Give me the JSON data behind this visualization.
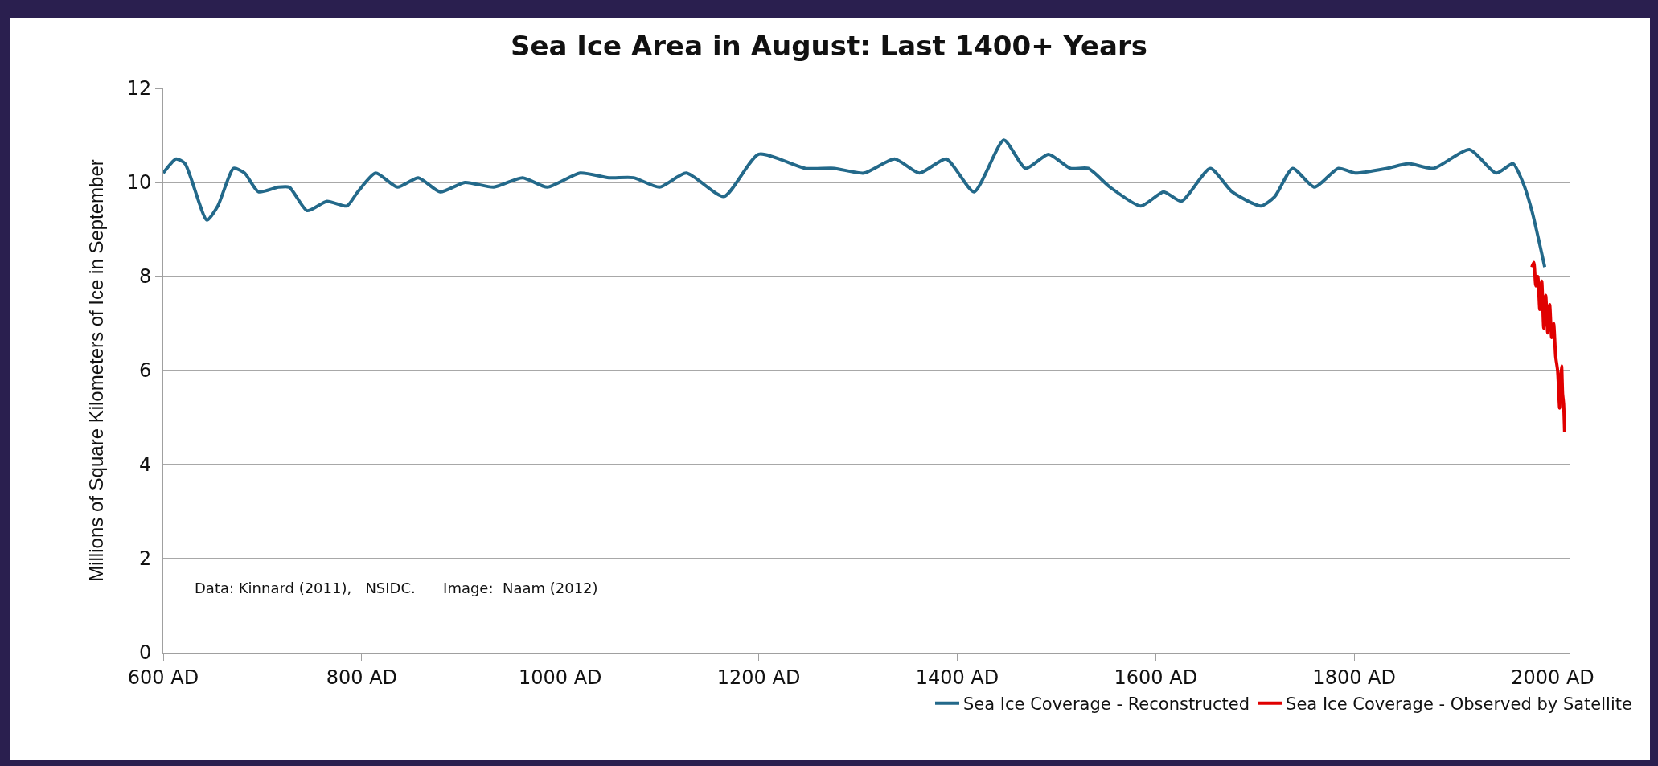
{
  "chart_data": {
    "type": "line",
    "title": "Sea Ice Area in August: Last 1400+ Years",
    "ylabel": "Millions of Square Kilometers of Ice in September",
    "xlim": [
      600,
      2017
    ],
    "ylim": [
      0,
      12
    ],
    "xticks": [
      {
        "value": 600,
        "label": "600 AD"
      },
      {
        "value": 800,
        "label": "800 AD"
      },
      {
        "value": 1000,
        "label": "1000 AD"
      },
      {
        "value": 1200,
        "label": "1200 AD"
      },
      {
        "value": 1400,
        "label": "1400 AD"
      },
      {
        "value": 1600,
        "label": "1600 AD"
      },
      {
        "value": 1800,
        "label": "1800 AD"
      },
      {
        "value": 2000,
        "label": "2000 AD"
      }
    ],
    "yticks": [
      0,
      2,
      4,
      6,
      8,
      10,
      12
    ],
    "grid": "y",
    "legend": "bottom",
    "marker": "none",
    "line_style": "solid",
    "annotations": [
      "Data: Kinnard (2011),   NSIDC.      Image:  Naam (2012)"
    ],
    "series": [
      {
        "name": "Sea Ice Coverage - Reconstructed",
        "color": "#23698a",
        "x": [
          600,
          613,
          622,
          644,
          655,
          671,
          682,
          696,
          716,
          727,
          745,
          765,
          785,
          796,
          814,
          836,
          857,
          879,
          904,
          933,
          962,
          987,
          1020,
          1049,
          1074,
          1100,
          1127,
          1165,
          1200,
          1247,
          1276,
          1306,
          1337,
          1362,
          1389,
          1417,
          1447,
          1469,
          1492,
          1514,
          1532,
          1554,
          1585,
          1608,
          1626,
          1655,
          1677,
          1706,
          1720,
          1738,
          1760,
          1784,
          1801,
          1833,
          1855,
          1880,
          1916,
          1943,
          1960,
          1970,
          1979,
          1992
        ],
        "values": [
          10.2,
          10.5,
          10.4,
          9.2,
          9.5,
          10.3,
          10.2,
          9.8,
          9.9,
          9.9,
          9.4,
          9.6,
          9.5,
          9.8,
          10.2,
          9.9,
          10.1,
          9.8,
          10.0,
          9.9,
          10.1,
          9.9,
          10.2,
          10.1,
          10.1,
          9.9,
          10.2,
          9.7,
          10.6,
          10.3,
          10.3,
          10.2,
          10.5,
          10.2,
          10.5,
          9.8,
          10.9,
          10.3,
          10.6,
          10.3,
          10.3,
          9.9,
          9.5,
          9.8,
          9.6,
          10.3,
          9.8,
          9.5,
          9.7,
          10.3,
          9.9,
          10.3,
          10.2,
          10.3,
          10.4,
          10.3,
          10.7,
          10.2,
          10.4,
          10.0,
          9.4,
          8.2
        ]
      },
      {
        "name": "Sea Ice Coverage - Observed by Satellite",
        "color": "#e00000",
        "x": [
          1979,
          1981,
          1983,
          1985,
          1987,
          1989,
          1991,
          1993,
          1995,
          1997,
          1999,
          2001,
          2003,
          2005,
          2007,
          2008,
          2009,
          2010,
          2011,
          2012
        ],
        "values": [
          8.2,
          8.3,
          7.8,
          8.0,
          7.3,
          7.9,
          6.9,
          7.6,
          6.8,
          7.4,
          6.7,
          7.0,
          6.3,
          6.0,
          5.2,
          5.8,
          6.1,
          5.5,
          5.3,
          4.7
        ]
      }
    ]
  }
}
